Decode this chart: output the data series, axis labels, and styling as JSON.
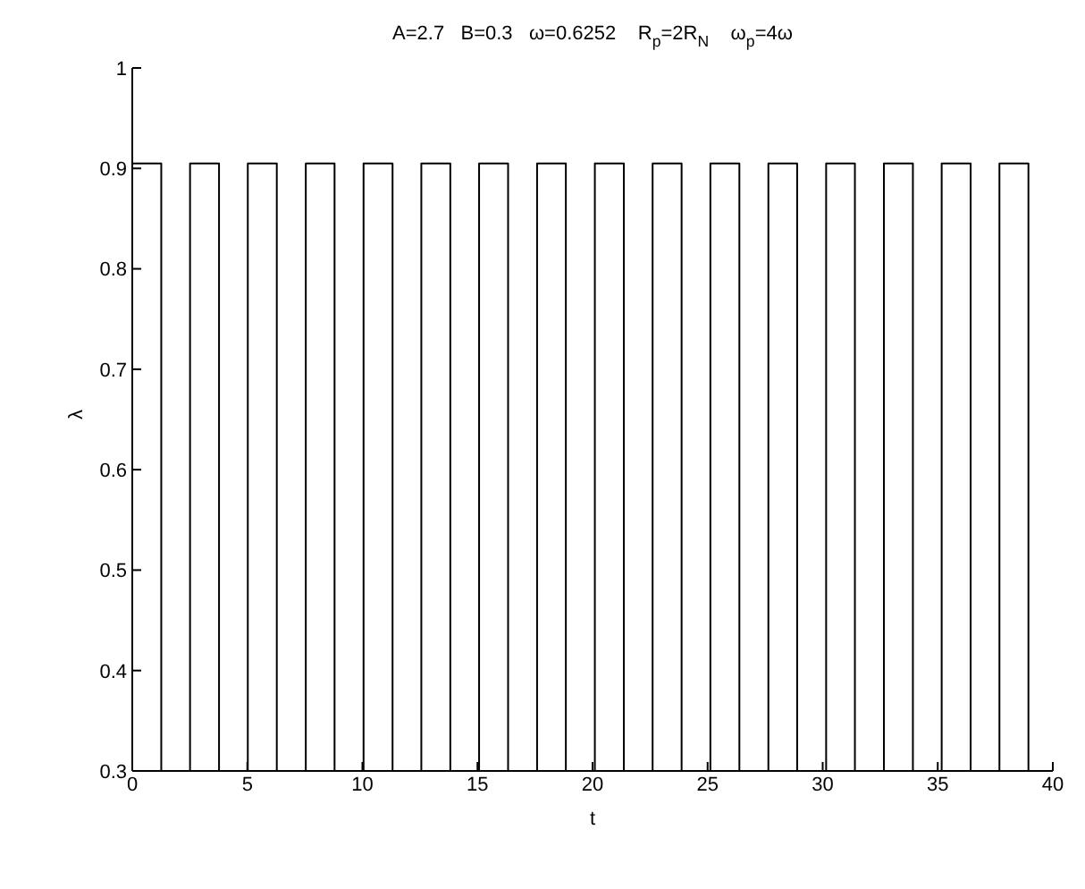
{
  "chart_data": {
    "type": "step",
    "title": "A=2.7   B=0.3   ω=0.6252    R$_{p}$=2R$_{N}$    ω$_{p}$=4ω",
    "xlabel": "t",
    "ylabel": "λ",
    "x": [
      0,
      1.26,
      2.51,
      3.77,
      5.02,
      6.28,
      7.54,
      8.79,
      10.05,
      11.31,
      12.56,
      13.82,
      15.07,
      16.33,
      17.59,
      18.84,
      20.1,
      21.36,
      22.61,
      23.87,
      25.12,
      26.38,
      27.64,
      28.89,
      30.15,
      31.4,
      32.66,
      33.92,
      35.17,
      36.43,
      37.68,
      38.94,
      40
    ],
    "values": [
      0.905,
      0.3,
      0.905,
      0.3,
      0.905,
      0.3,
      0.905,
      0.3,
      0.905,
      0.3,
      0.905,
      0.3,
      0.905,
      0.3,
      0.905,
      0.3,
      0.905,
      0.3,
      0.905,
      0.3,
      0.905,
      0.3,
      0.905,
      0.3,
      0.905,
      0.3,
      0.905,
      0.3,
      0.905,
      0.3,
      0.905,
      0.3,
      0.3
    ],
    "color": "#000000",
    "marker": "none",
    "grid": false,
    "legend": false,
    "xlim": [
      0,
      40
    ],
    "xticks": [
      0,
      5,
      10,
      15,
      20,
      25,
      30,
      35,
      40
    ],
    "ylim": [
      0.3,
      1
    ],
    "yticks": [
      0.3,
      0.4,
      0.5,
      0.6,
      0.7,
      0.8,
      0.9,
      1
    ]
  }
}
